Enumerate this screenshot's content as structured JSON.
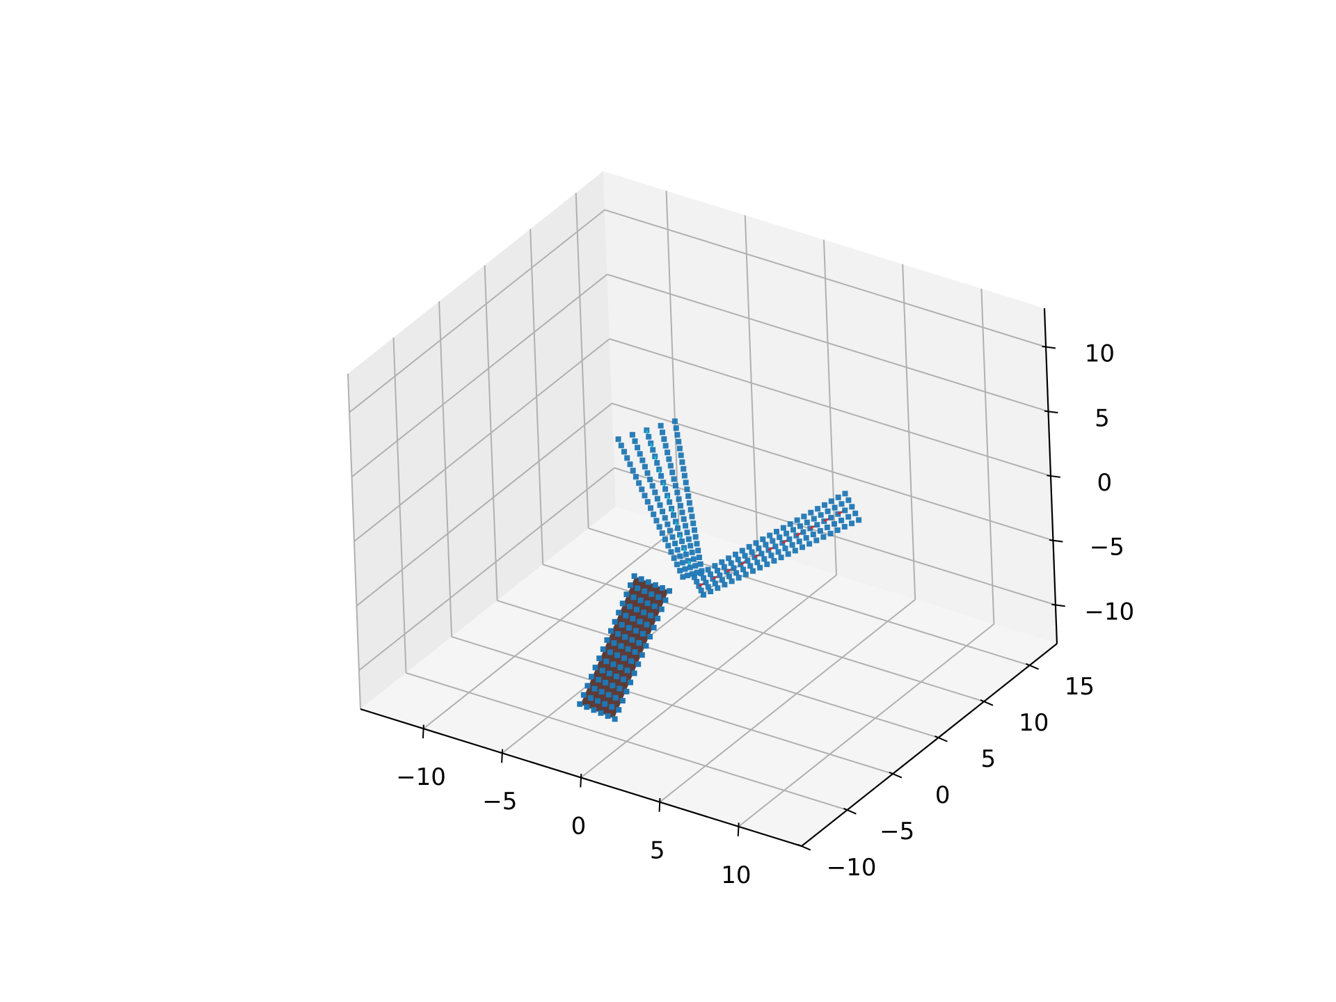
{
  "colors": {
    "background": "#ffffff",
    "pane_back": "#f2f2f2",
    "pane_side": "#ebebeb",
    "pane_floor": "#f5f5f5",
    "grid": "#b0b0b0",
    "axis_line": "#000000",
    "marker": "#1f77b4",
    "body": "#5e3b36",
    "dash_red": "#d62728",
    "dash_cyan": "#17becf"
  },
  "chart_data": {
    "type": "scatter",
    "projection": "3d",
    "title": "",
    "xlabel": "",
    "ylabel": "",
    "zlabel": "",
    "xlim": [
      -14,
      14
    ],
    "ylim": [
      -10,
      18
    ],
    "zlim": [
      -13,
      13
    ],
    "grid": true,
    "legend": "none",
    "x_ticks": [
      -10,
      -5,
      0,
      5,
      10
    ],
    "y_ticks": [
      -10,
      -5,
      0,
      5,
      10,
      15
    ],
    "z_ticks": [
      -10,
      -5,
      0,
      5,
      10
    ],
    "x_tick_labels": [
      "−10",
      "−5",
      "0",
      "5",
      "10"
    ],
    "y_tick_labels": [
      "−10",
      "−5",
      "0",
      "5",
      "10",
      "15"
    ],
    "z_tick_labels": [
      "−10",
      "−5",
      "0",
      "5",
      "10"
    ],
    "objects": [
      {
        "kind": "point cloud",
        "color": "#1f77b4",
        "from": [
          -4,
          5,
          4
        ],
        "to": [
          1,
          1,
          -3
        ],
        "width_start": 1.8,
        "width_end": 0.6
      },
      {
        "kind": "point cloud",
        "color": "#1f77b4",
        "from": [
          2,
          0,
          -3
        ],
        "to": [
          9,
          5,
          3
        ],
        "width_start": 0.6,
        "width_end": 0.9
      },
      {
        "kind": "solid body with point rings",
        "body_color": "#5e3b36",
        "marker_color": "#1f77b4",
        "from": [
          0,
          -8,
          -9
        ],
        "to": [
          2,
          -5,
          0
        ],
        "radius": 1.1,
        "rings": 14
      }
    ]
  }
}
